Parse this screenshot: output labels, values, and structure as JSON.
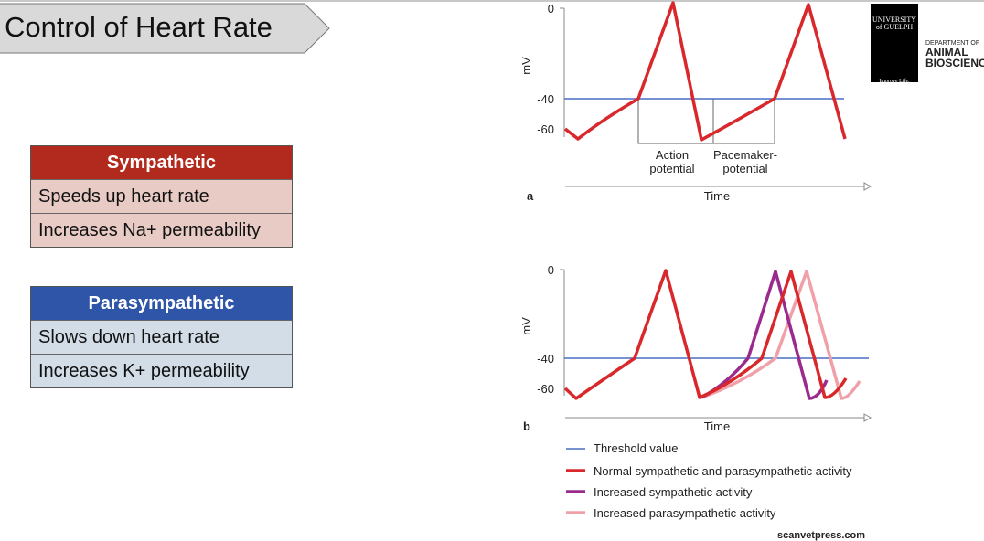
{
  "title": "Control of Heart Rate",
  "logo": {
    "university": "UNIVERSITY of GUELPH",
    "tagline": "Improve Life.",
    "department_of": "DEPARTMENT OF",
    "department_line1": "ANIMAL",
    "department_line2": "BIOSCIENCE"
  },
  "sympathetic": {
    "header": "Sympathetic",
    "rows": [
      "Speeds up heart rate",
      "Increases Na+ permeability"
    ],
    "header_color": "#b22a1e",
    "row_color": "#e8cbc5"
  },
  "parasympathetic": {
    "header": "Parasympathetic",
    "rows": [
      "Slows down heart rate",
      "Increases K+ permeability"
    ],
    "header_color": "#2f55a8",
    "row_color": "#d2dde8"
  },
  "diagram_a": {
    "panel": "a",
    "ylabel": "mV",
    "yticks": [
      "0",
      "-40",
      "-60"
    ],
    "xlabel": "Time",
    "bracket_labels": [
      [
        "Action",
        "potential"
      ],
      [
        "Pacemaker-",
        "potential"
      ]
    ]
  },
  "diagram_b": {
    "panel": "b",
    "ylabel": "mV",
    "yticks": [
      "0",
      "-40",
      "-60"
    ],
    "xlabel": "Time"
  },
  "legend": [
    {
      "label": "Threshold value",
      "color": "#4a6fc4"
    },
    {
      "label": "Normal sympathetic and parasympathetic activity",
      "color": "#d9282b"
    },
    {
      "label": "Increased sympathetic activity",
      "color": "#9b2a8e"
    },
    {
      "label": "Increased parasympathetic activity",
      "color": "#f0a0a8"
    }
  ],
  "credit": "scanvetpress.com"
}
